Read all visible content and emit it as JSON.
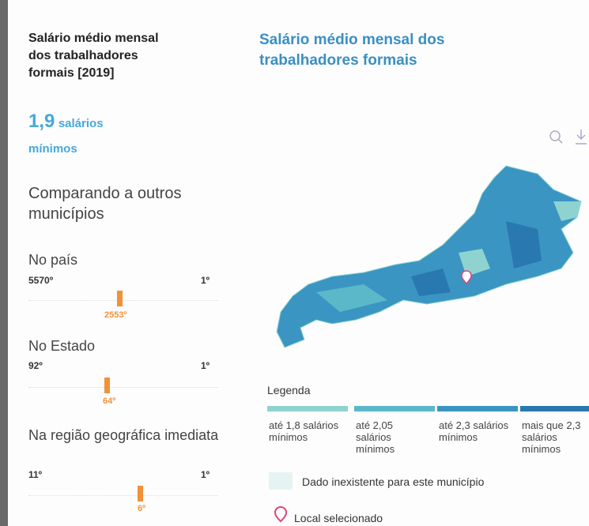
{
  "left": {
    "title": "Salário médio mensal dos trabalhadores formais [2019]",
    "value": "1,9",
    "unit_1": "salários",
    "unit_2": "mínimos",
    "compare": "Comparando a outros municípios",
    "sections": [
      {
        "label": "No país",
        "min": "5570º",
        "max": "1º",
        "rank": "2553º"
      },
      {
        "label": "No Estado",
        "min": "92º",
        "max": "1º",
        "rank": "64º"
      },
      {
        "label": "Na região geográfica imediata",
        "min": "11º",
        "max": "1º",
        "rank": "6º"
      }
    ]
  },
  "right": {
    "title": "Salário médio mensal dos trabalhadores formais",
    "legend_title": "Legenda",
    "legend": [
      {
        "label": "até 1,8 salários mínimos",
        "color": "#8fd3d0"
      },
      {
        "label": "até 2,05 salários mínimos",
        "color": "#5bb8c9"
      },
      {
        "label": "até 2,3 salários mínimos",
        "color": "#3a95c2"
      },
      {
        "label": "mais que 2,3 salários mínimos",
        "color": "#2a78b0"
      }
    ],
    "no_data": "Dado inexistente para este município",
    "selected": "Local selecionado"
  }
}
